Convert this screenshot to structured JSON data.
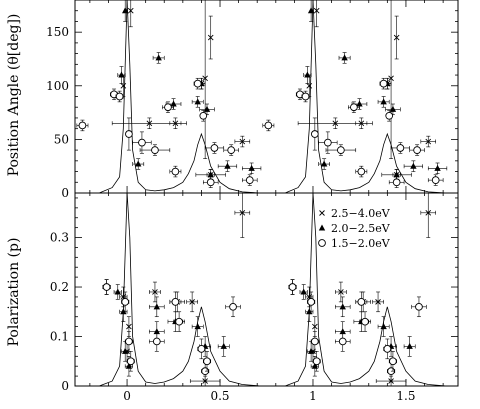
{
  "chart_data": [
    {
      "type": "scatter",
      "panel": "top",
      "title": "",
      "xlabel": "",
      "ylabel": "Position Angle (θ[deg])",
      "xlim": [
        -0.28,
        1.78
      ],
      "ylim": [
        0,
        180
      ],
      "xticks": [],
      "yticks": [
        0,
        50,
        100,
        150
      ],
      "ytick_labels": [
        "0",
        "50",
        "100",
        "150"
      ],
      "grid": false,
      "legend": "none",
      "curve": {
        "name": "",
        "x": [
          -0.28,
          -0.15,
          -0.08,
          -0.04,
          -0.02,
          0.0,
          0.015,
          0.03,
          0.06,
          0.1,
          0.15,
          0.2,
          0.25,
          0.3,
          0.33,
          0.36,
          0.38,
          0.4,
          0.42,
          0.45,
          0.5,
          0.55,
          0.62,
          0.72
        ],
        "y": [
          0,
          0,
          5,
          15,
          60,
          180,
          120,
          40,
          10,
          3,
          2,
          3,
          5,
          10,
          18,
          30,
          45,
          55,
          45,
          25,
          10,
          4,
          1,
          0
        ],
        "period": 1
      },
      "series": [
        {
          "name": "2.5–4.0eV",
          "marker": "x",
          "points": [
            [
              -0.02,
              100,
              0,
              10
            ],
            [
              0.02,
              170,
              0,
              15
            ],
            [
              0.12,
              65,
              0.2,
              5
            ],
            [
              0.26,
              65,
              0.03,
              5
            ],
            [
              0.4,
              102,
              0.02,
              5
            ],
            [
              0.42,
              107,
              0,
              75
            ],
            [
              0.45,
              17,
              0.08,
              5
            ],
            [
              0.62,
              48,
              0.04,
              5
            ],
            [
              0.45,
              145,
              0,
              20
            ]
          ]
        },
        {
          "name": "2.0–2.5eV",
          "marker": "triangle",
          "points": [
            [
              -0.03,
              110,
              0.02,
              8
            ],
            [
              -0.01,
              170,
              0,
              10
            ],
            [
              0.06,
              27,
              0.03,
              5
            ],
            [
              0.17,
              126,
              0.03,
              5
            ],
            [
              0.25,
              83,
              0.04,
              5
            ],
            [
              0.38,
              85,
              0.03,
              5
            ],
            [
              0.4,
              102,
              0.02,
              5
            ],
            [
              0.43,
              78,
              0.04,
              5
            ],
            [
              0.45,
              17,
              0.02,
              5
            ],
            [
              0.54,
              25,
              0.05,
              5
            ],
            [
              0.67,
              23,
              0.05,
              5
            ]
          ]
        },
        {
          "name": "1.5–2.0eV",
          "marker": "circle",
          "points": [
            [
              -0.24,
              63,
              0.03,
              5
            ],
            [
              -0.07,
              92,
              0.02,
              5
            ],
            [
              -0.04,
              90,
              0.02,
              5
            ],
            [
              0.01,
              55,
              0,
              15
            ],
            [
              0.08,
              47,
              0.05,
              10
            ],
            [
              0.15,
              40,
              0.08,
              5
            ],
            [
              0.22,
              80,
              0.03,
              5
            ],
            [
              0.26,
              20,
              0.03,
              5
            ],
            [
              0.38,
              102,
              0.02,
              5
            ],
            [
              0.41,
              72,
              0,
              5
            ],
            [
              0.45,
              10,
              0.04,
              5
            ],
            [
              0.47,
              42,
              0.05,
              5
            ],
            [
              0.56,
              40,
              0.04,
              5
            ],
            [
              0.66,
              12,
              0.04,
              5
            ]
          ]
        }
      ]
    },
    {
      "type": "scatter",
      "panel": "bottom",
      "title": "",
      "xlabel": "",
      "ylabel": "Polarization (p)",
      "xlim": [
        -0.28,
        1.78
      ],
      "ylim": [
        0,
        0.39
      ],
      "xticks": [
        0,
        0.5,
        1,
        1.5
      ],
      "xtick_labels": [
        "0",
        "0.5",
        "1",
        "1.5"
      ],
      "yticks": [
        0,
        0.1,
        0.2,
        0.3
      ],
      "ytick_labels": [
        "0",
        "0.1",
        "0.2",
        "0.3"
      ],
      "grid": false,
      "legend": "top-right",
      "legend_entries": [
        {
          "label": "2.5−4.0eV",
          "marker": "x"
        },
        {
          "label": "2.0−2.5eV",
          "marker": "triangle"
        },
        {
          "label": "1.5−2.0eV",
          "marker": "circle"
        }
      ],
      "curve": {
        "name": "",
        "x": [
          -0.28,
          -0.15,
          -0.08,
          -0.04,
          -0.02,
          0.0,
          0.015,
          0.03,
          0.06,
          0.1,
          0.15,
          0.2,
          0.25,
          0.3,
          0.33,
          0.36,
          0.38,
          0.4,
          0.42,
          0.45,
          0.5,
          0.55,
          0.62,
          0.72
        ],
        "y": [
          0,
          0,
          0.01,
          0.04,
          0.15,
          0.39,
          0.3,
          0.1,
          0.03,
          0.008,
          0.005,
          0.008,
          0.015,
          0.03,
          0.05,
          0.09,
          0.13,
          0.16,
          0.13,
          0.07,
          0.03,
          0.01,
          0.003,
          0
        ],
        "period": 1
      },
      "series": [
        {
          "name": "2.5–4.0eV",
          "marker": "x",
          "points": [
            [
              -0.02,
              0.18,
              0.02,
              0.02
            ],
            [
              0.01,
              0.12,
              0,
              0.02
            ],
            [
              0.0,
              0.07,
              0,
              0.02
            ],
            [
              0.15,
              0.19,
              0.03,
              0.02
            ],
            [
              0.27,
              0.17,
              0.04,
              0.02
            ],
            [
              0.35,
              0.17,
              0.03,
              0.02
            ],
            [
              0.62,
              0.35,
              0.04,
              0.05
            ],
            [
              0.42,
              0.01,
              0.08,
              0.01
            ]
          ]
        },
        {
          "name": "2.0–2.5eV",
          "marker": "triangle",
          "points": [
            [
              -0.11,
              0.2,
              0.02,
              0.015
            ],
            [
              -0.05,
              0.19,
              0.02,
              0.015
            ],
            [
              -0.02,
              0.15,
              0.02,
              0.02
            ],
            [
              -0.01,
              0.07,
              0.02,
              0.02
            ],
            [
              0.01,
              0.04,
              0.02,
              0.02
            ],
            [
              0.16,
              0.16,
              0.04,
              0.02
            ],
            [
              0.16,
              0.11,
              0.04,
              0.02
            ],
            [
              0.26,
              0.13,
              0.04,
              0.02
            ],
            [
              0.38,
              0.12,
              0.03,
              0.02
            ],
            [
              0.42,
              0.08,
              0.03,
              0.02
            ],
            [
              0.52,
              0.08,
              0.03,
              0.02
            ]
          ]
        },
        {
          "name": "1.5–2.0eV",
          "marker": "circle",
          "points": [
            [
              -0.11,
              0.2,
              0.02,
              0.015
            ],
            [
              -0.01,
              0.17,
              0.02,
              0.02
            ],
            [
              0.01,
              0.09,
              0.02,
              0.02
            ],
            [
              0.02,
              0.05,
              0.02,
              0.02
            ],
            [
              0.16,
              0.09,
              0.04,
              0.02
            ],
            [
              0.26,
              0.17,
              0.03,
              0.02
            ],
            [
              0.28,
              0.13,
              0.03,
              0.02
            ],
            [
              0.4,
              0.075,
              0.02,
              0.02
            ],
            [
              0.42,
              0.03,
              0.02,
              0.02
            ],
            [
              0.43,
              0.05,
              0.02,
              0.02
            ],
            [
              0.57,
              0.16,
              0.04,
              0.02
            ]
          ]
        }
      ]
    }
  ]
}
